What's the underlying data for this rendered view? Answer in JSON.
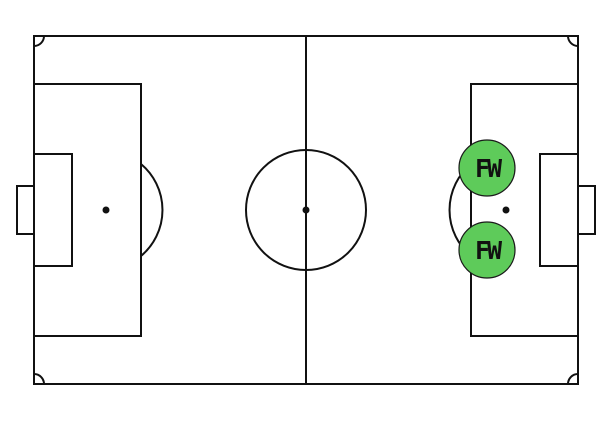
{
  "pitch": {
    "line_color": "#111111",
    "background": "#ffffff"
  },
  "players": [
    {
      "label": "FW",
      "color": "#5ecb5a"
    },
    {
      "label": "FW",
      "color": "#5ecb5a"
    }
  ]
}
